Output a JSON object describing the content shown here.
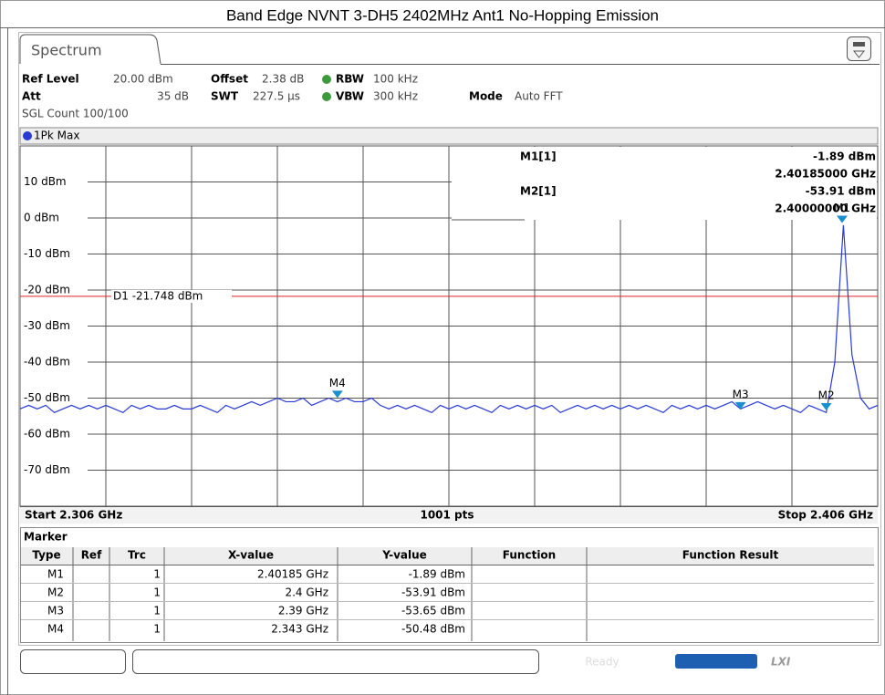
{
  "title": "Band Edge NVNT 3-DH5 2402MHz Ant1 No-Hopping Emission",
  "tab": "Spectrum",
  "settings": {
    "ref_level_label": "Ref Level",
    "ref_level": "20.00 dBm",
    "offset_label": "Offset",
    "offset": "2.38 dB",
    "rbw_label": "RBW",
    "rbw": "100 kHz",
    "att_label": "Att",
    "att": "35 dB",
    "swt_label": "SWT",
    "swt": "227.5 µs",
    "vbw_label": "VBW",
    "vbw": "300 kHz",
    "mode_label": "Mode",
    "mode": "Auto FFT",
    "count": "SGL Count 100/100"
  },
  "trace_label": "1Pk Max",
  "chart_data": {
    "type": "line",
    "color": "#2a3bd6",
    "xlim": [
      2.306,
      2.406
    ],
    "xticks": [
      2.306,
      2.316,
      2.326,
      2.336,
      2.346,
      2.356,
      2.366,
      2.376,
      2.386,
      2.396,
      2.406
    ],
    "ylim": [
      -80,
      20
    ],
    "yticks": [
      {
        "value": 10,
        "label": "10 dBm"
      },
      {
        "value": 0,
        "label": "0 dBm"
      },
      {
        "value": -10,
        "label": "-10 dBm"
      },
      {
        "value": -20,
        "label": "-20 dBm"
      },
      {
        "value": -30,
        "label": "-30 dBm"
      },
      {
        "value": -40,
        "label": "-40 dBm"
      },
      {
        "value": -50,
        "label": "-50 dBm"
      },
      {
        "value": -60,
        "label": "-60 dBm"
      },
      {
        "value": -70,
        "label": "-70 dBm"
      }
    ],
    "grid": true,
    "start_label": "Start 2.306 GHz",
    "points_label": "1001 pts",
    "stop_label": "Stop 2.406 GHz",
    "display_line": {
      "value": -21.748,
      "label": "D1 -21.748 dBm",
      "color": "#e02020"
    },
    "x": [
      2.306,
      2.307,
      2.308,
      2.309,
      2.31,
      2.311,
      2.312,
      2.313,
      2.314,
      2.315,
      2.316,
      2.317,
      2.318,
      2.319,
      2.32,
      2.321,
      2.322,
      2.323,
      2.324,
      2.325,
      2.326,
      2.327,
      2.328,
      2.329,
      2.33,
      2.331,
      2.332,
      2.333,
      2.334,
      2.335,
      2.336,
      2.337,
      2.338,
      2.339,
      2.34,
      2.341,
      2.342,
      2.343,
      2.344,
      2.345,
      2.346,
      2.347,
      2.348,
      2.349,
      2.35,
      2.351,
      2.352,
      2.353,
      2.354,
      2.355,
      2.356,
      2.357,
      2.358,
      2.359,
      2.36,
      2.361,
      2.362,
      2.363,
      2.364,
      2.365,
      2.366,
      2.367,
      2.368,
      2.369,
      2.37,
      2.371,
      2.372,
      2.373,
      2.374,
      2.375,
      2.376,
      2.377,
      2.378,
      2.379,
      2.38,
      2.381,
      2.382,
      2.383,
      2.384,
      2.385,
      2.386,
      2.387,
      2.388,
      2.389,
      2.39,
      2.391,
      2.392,
      2.393,
      2.394,
      2.395,
      2.396,
      2.397,
      2.398,
      2.399,
      2.4,
      2.401,
      2.402,
      2.403,
      2.404,
      2.405,
      2.406
    ],
    "values": [
      -53,
      -52,
      -53,
      -52,
      -54,
      -53,
      -52,
      -53,
      -52,
      -53,
      -52,
      -53,
      -54,
      -52,
      -53,
      -52,
      -53,
      -53,
      -52,
      -53,
      -53,
      -52,
      -53,
      -54,
      -52,
      -53,
      -52,
      -51,
      -52,
      -51,
      -50,
      -51,
      -51,
      -50,
      -52,
      -51,
      -50,
      -51,
      -50,
      -51,
      -51,
      -50,
      -52,
      -53,
      -52,
      -53,
      -52,
      -53,
      -54,
      -52,
      -53,
      -52,
      -53,
      -52,
      -53,
      -54,
      -52,
      -53,
      -52,
      -53,
      -52,
      -53,
      -52,
      -54,
      -53,
      -52,
      -53,
      -52,
      -53,
      -52,
      -53,
      -52,
      -53,
      -52,
      -53,
      -54,
      -52,
      -53,
      -52,
      -53,
      -52,
      -53,
      -52,
      -51,
      -53,
      -52,
      -51,
      -52,
      -53,
      -52,
      -53,
      -54,
      -52,
      -53,
      -54,
      -40,
      -2,
      -38,
      -50,
      -53,
      -52
    ],
    "markers": [
      {
        "name": "M1",
        "x": 2.40185,
        "y": -1.89
      },
      {
        "name": "M2",
        "x": 2.4,
        "y": -53.91
      },
      {
        "name": "M3",
        "x": 2.39,
        "y": -53.65
      },
      {
        "name": "M4",
        "x": 2.343,
        "y": -50.48
      }
    ],
    "readout": [
      {
        "name": "M1[1]",
        "level": "-1.89 dBm",
        "freq": "2.40185000 GHz"
      },
      {
        "name": "M2[1]",
        "level": "-53.91 dBm",
        "freq": "2.40000000 GHz"
      }
    ]
  },
  "table": {
    "title": "Marker",
    "columns": [
      "Type",
      "Ref",
      "Trc",
      "X-value",
      "Y-value",
      "Function",
      "Function Result"
    ],
    "rows": [
      {
        "type": "M1",
        "trc": "1",
        "x": "2.40185 GHz",
        "y": "-1.89 dBm"
      },
      {
        "type": "M2",
        "trc": "1",
        "x": "2.4 GHz",
        "y": "-53.91 dBm"
      },
      {
        "type": "M3",
        "trc": "1",
        "x": "2.39 GHz",
        "y": "-53.65 dBm"
      },
      {
        "type": "M4",
        "trc": "1",
        "x": "2.343 GHz",
        "y": "-50.48 dBm"
      }
    ]
  },
  "status": {
    "ready": "Ready",
    "lxi": "LXI"
  }
}
